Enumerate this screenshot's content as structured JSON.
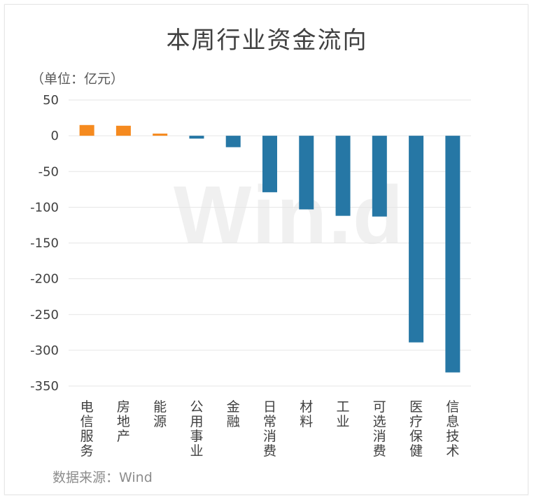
{
  "chart_data": {
    "type": "bar",
    "title": "本周行业资金流向",
    "unit_label": "（单位：亿元）",
    "source": "数据来源：Wind",
    "watermark": "Win.d",
    "categories": [
      "电信服务",
      "房地产",
      "能源",
      "公用事业",
      "金融",
      "日常消费",
      "材料",
      "工业",
      "可选消费",
      "医疗保健",
      "信息技术"
    ],
    "values": [
      15,
      14,
      3,
      -4,
      -16,
      -79,
      -103,
      -112,
      -113,
      -289,
      -331
    ],
    "ylim": [
      -350,
      50
    ],
    "yticks": [
      50,
      0,
      -50,
      -100,
      -150,
      -200,
      -250,
      -300,
      -350
    ],
    "grid": true,
    "colors": {
      "positive": "#f58a1f",
      "negative": "#2677a5",
      "grid": "#e6e6e6",
      "axis_text": "#404040",
      "category_text": "#404040"
    }
  }
}
